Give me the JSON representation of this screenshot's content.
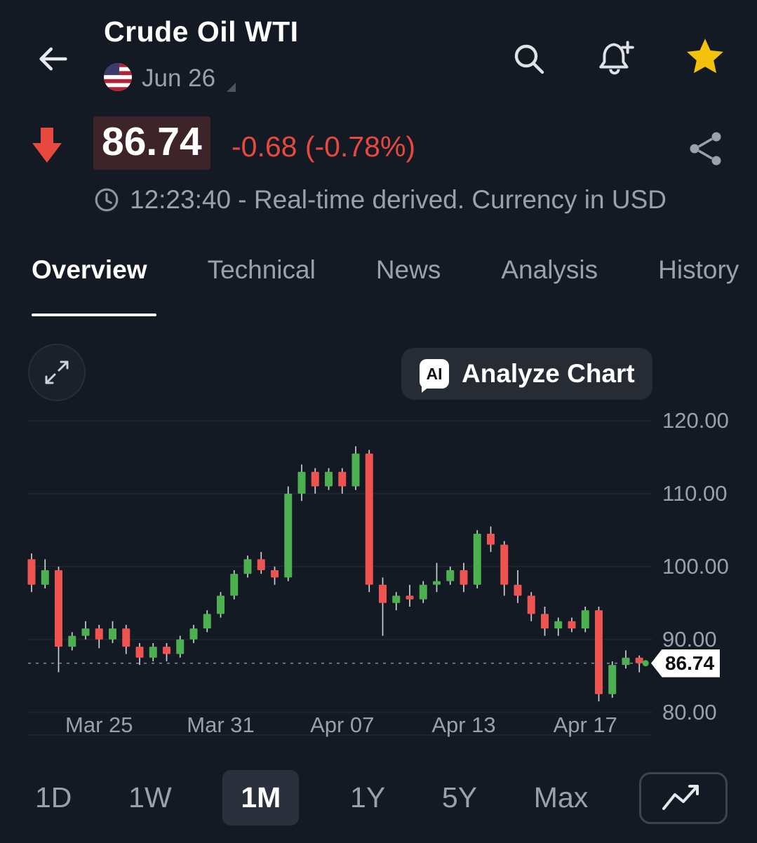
{
  "theme": {
    "bg": "#141a23",
    "text-primary": "#f2f4f6",
    "text-secondary": "#98a1ac",
    "accent-red": "#e8493f",
    "accent-gold": "#f4c20d",
    "surface": "#272c34",
    "price-flash-bg": "#3d2428",
    "grid": "#232a34",
    "dash": "#7e868f"
  },
  "header": {
    "title": "Crude Oil WTI",
    "contract_date": "Jun 26"
  },
  "quote": {
    "price": "86.74",
    "change": "-0.68 (-0.78%)",
    "direction": "down",
    "info_line": "12:23:40 - Real-time derived. Currency in USD"
  },
  "tabs": {
    "items": [
      {
        "label": "Overview",
        "active": true
      },
      {
        "label": "Technical",
        "active": false
      },
      {
        "label": "News",
        "active": false
      },
      {
        "label": "Analysis",
        "active": false
      },
      {
        "label": "History",
        "active": false
      }
    ]
  },
  "chart_controls": {
    "analyze_label": "Analyze Chart",
    "ai_badge": "AI"
  },
  "chart_data": {
    "type": "candlestick",
    "title": "Crude Oil WTI 1M candlestick chart",
    "ylim": [
      76.7,
      122.4
    ],
    "y_ticks": [
      120.0,
      110.0,
      100.0,
      90.0,
      80.0
    ],
    "x_ticks": [
      {
        "label": "Mar 25",
        "index": 5
      },
      {
        "label": "Mar 31",
        "index": 14
      },
      {
        "label": "Apr 07",
        "index": 23
      },
      {
        "label": "Apr 13",
        "index": 32
      },
      {
        "label": "Apr 17",
        "index": 41
      }
    ],
    "last_price": 86.74,
    "last_price_label": "86.74",
    "colors": {
      "up": "#4caf50",
      "down": "#ef5350",
      "wick": "#c9ced4"
    },
    "candles": [
      [
        101.0,
        101.8,
        96.5,
        97.5
      ],
      [
        97.5,
        101.0,
        97.0,
        99.5
      ],
      [
        99.5,
        100.0,
        85.5,
        89.0
      ],
      [
        89.0,
        91.0,
        88.5,
        90.5
      ],
      [
        90.5,
        92.5,
        90.0,
        91.5
      ],
      [
        91.5,
        92.0,
        88.8,
        90.0
      ],
      [
        90.0,
        92.5,
        89.5,
        91.5
      ],
      [
        91.5,
        92.0,
        88.0,
        89.0
      ],
      [
        89.0,
        89.5,
        86.5,
        87.5
      ],
      [
        87.5,
        89.5,
        87.0,
        89.0
      ],
      [
        89.0,
        89.5,
        87.0,
        88.0
      ],
      [
        88.0,
        90.5,
        87.5,
        90.0
      ],
      [
        90.0,
        92.0,
        89.5,
        91.5
      ],
      [
        91.5,
        94.0,
        91.0,
        93.5
      ],
      [
        93.5,
        96.5,
        93.0,
        96.0
      ],
      [
        96.0,
        99.5,
        95.5,
        99.0
      ],
      [
        99.0,
        101.5,
        98.5,
        101.0
      ],
      [
        101.0,
        102.0,
        99.0,
        99.5
      ],
      [
        99.5,
        100.0,
        97.5,
        98.5
      ],
      [
        98.5,
        111.0,
        98.0,
        110.0
      ],
      [
        110.0,
        114.0,
        109.0,
        113.0
      ],
      [
        113.0,
        113.5,
        110.0,
        111.0
      ],
      [
        111.0,
        113.5,
        110.5,
        113.0
      ],
      [
        113.0,
        113.5,
        110.0,
        111.0
      ],
      [
        111.0,
        116.5,
        110.5,
        115.5
      ],
      [
        115.5,
        116.0,
        96.5,
        97.5
      ],
      [
        97.5,
        98.5,
        90.5,
        95.0
      ],
      [
        95.0,
        96.5,
        94.0,
        96.0
      ],
      [
        96.0,
        97.5,
        94.5,
        95.5
      ],
      [
        95.5,
        98.0,
        95.0,
        97.5
      ],
      [
        97.5,
        100.5,
        96.5,
        98.0
      ],
      [
        98.0,
        100.0,
        97.5,
        99.5
      ],
      [
        99.5,
        100.5,
        96.5,
        97.5
      ],
      [
        97.5,
        105.0,
        97.0,
        104.5
      ],
      [
        104.5,
        105.5,
        102.0,
        103.0
      ],
      [
        103.0,
        103.5,
        96.0,
        97.5
      ],
      [
        97.5,
        99.5,
        95.0,
        96.0
      ],
      [
        96.0,
        96.5,
        92.5,
        93.5
      ],
      [
        93.5,
        94.5,
        90.5,
        91.5
      ],
      [
        91.5,
        93.0,
        90.5,
        92.5
      ],
      [
        92.5,
        93.0,
        91.0,
        91.5
      ],
      [
        91.5,
        94.5,
        91.0,
        94.0
      ],
      [
        94.0,
        94.5,
        81.5,
        82.5
      ],
      [
        82.5,
        87.0,
        82.0,
        86.5
      ],
      [
        86.5,
        88.5,
        86.0,
        87.5
      ],
      [
        87.5,
        87.8,
        85.5,
        86.74
      ]
    ]
  },
  "timeframes": {
    "items": [
      {
        "label": "1D"
      },
      {
        "label": "1W"
      },
      {
        "label": "1M"
      },
      {
        "label": "1Y"
      },
      {
        "label": "5Y"
      },
      {
        "label": "Max"
      }
    ],
    "selected": "1M"
  },
  "icons": {
    "back-arrow-icon": "left arrow",
    "us-flag-icon": "US flag",
    "dropdown-caret-icon": "corner caret",
    "search-icon": "magnifier",
    "alert-bell-icon": "bell with plus",
    "favorite-star-icon": "filled star",
    "price-down-arrow-icon": "thick down arrow",
    "share-icon": "share nodes",
    "clock-icon": "clock",
    "expand-icon": "expand diagonal arrows",
    "ai-icon": "AI speech bubble",
    "line-chart-icon": "zigzag trend line"
  }
}
